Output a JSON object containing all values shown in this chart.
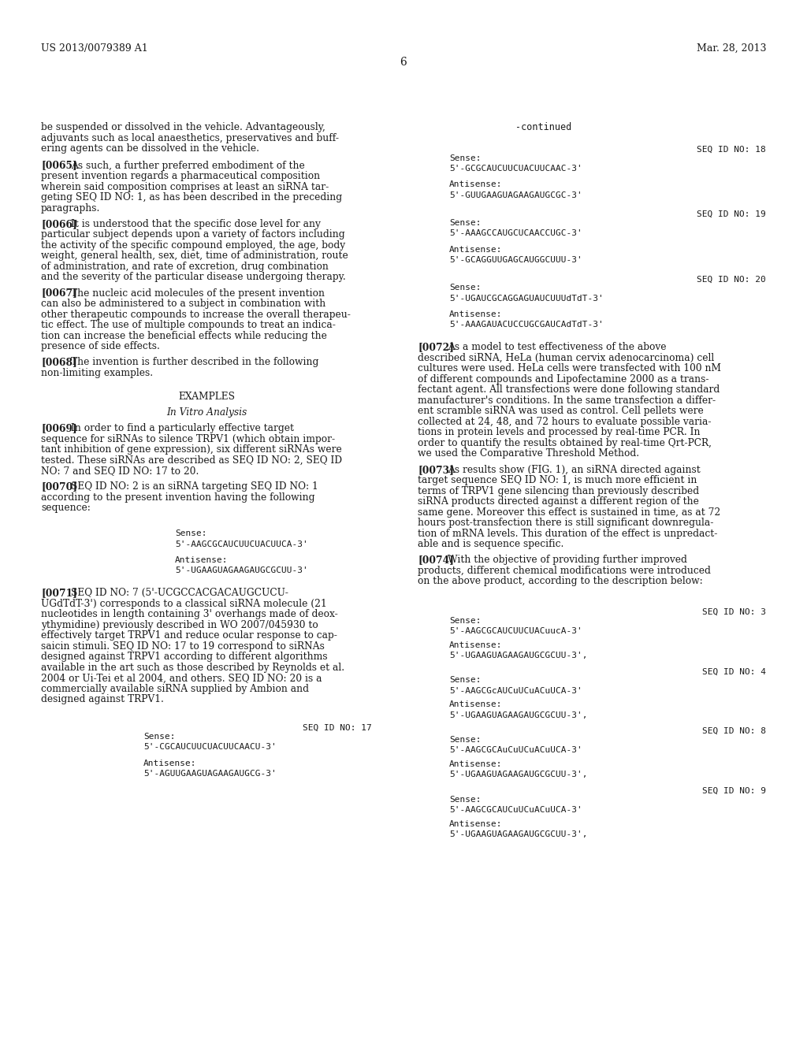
{
  "background_color": "#ffffff",
  "text_color": "#1a1a1a",
  "header_left": "US 2013/0079389 A1",
  "header_right": "Mar. 28, 2013",
  "page_number": "6",
  "continued_label": "-continued",
  "intro_text_lines": [
    "be suspended or dissolved in the vehicle. Advantageously,",
    "adjuvants such as local anaesthetics, preservatives and buff-",
    "ering agents can be dissolved in the vehicle."
  ],
  "para_0065_lines": [
    "As such, a further preferred embodiment of the",
    "present invention regards a pharmaceutical composition",
    "wherein said composition comprises at least an siRNA tar-",
    "geting SEQ ID NO: 1, as has been described in the preceding",
    "paragraphs."
  ],
  "para_0066_lines": [
    "It is understood that the specific dose level for any",
    "particular subject depends upon a variety of factors including",
    "the activity of the specific compound employed, the age, body",
    "weight, general health, sex, diet, time of administration, route",
    "of administration, and rate of excretion, drug combination",
    "and the severity of the particular disease undergoing therapy."
  ],
  "para_0067_lines": [
    "The nucleic acid molecules of the present invention",
    "can also be administered to a subject in combination with",
    "other therapeutic compounds to increase the overall therapeu-",
    "tic effect. The use of multiple compounds to treat an indica-",
    "tion can increase the beneficial effects while reducing the",
    "presence of side effects."
  ],
  "para_0068_lines": [
    "The invention is further described in the following",
    "non-limiting examples."
  ],
  "examples_header": "EXAMPLES",
  "examples_subheader": "In Vitro Analysis",
  "para_0069_lines": [
    "In order to find a particularly effective target",
    "sequence for siRNAs to silence TRPV1 (which obtain impor-",
    "tant inhibition of gene expression), six different siRNAs were",
    "tested. These siRNAs are described as SEQ ID NO: 2, SEQ ID",
    "NO: 7 and SEQ ID NO: 17 to 20."
  ],
  "para_0070_lines": [
    "SEQ ID NO: 2 is an siRNA targeting SEQ ID NO: 1",
    "according to the present invention having the following",
    "sequence:"
  ],
  "seq_2_indent": "                    ",
  "seq_2_sense_label": "Sense:",
  "seq_2_sense": "5'-AAGCGCAUCUUCUACUUCA-3'",
  "seq_2_antisense_label": "Antisense:",
  "seq_2_antisense": "5'-UGAAGUAGAAGAUGCGCUU-3'",
  "para_0071_lines": [
    "SEQ ID NO: 7 (5'-UCGCCACGACAUGCUCU-",
    "UGdTdT-3') corresponds to a classical siRNA molecule (21",
    "nucleotides in length containing 3' overhangs made of deox-",
    "ythymidine) previously described in WO 2007/045930 to",
    "effectively target TRPV1 and reduce ocular response to cap-",
    "saicin stimuli. SEQ ID NO: 17 to 19 correspond to siRNAs",
    "designed against TRPV1 according to different algorithms",
    "available in the art such as those described by Reynolds et al.",
    "2004 or Ui-Tei et al 2004, and others. SEQ ID NO: 20 is a",
    "commercially available siRNA supplied by Ambion and",
    "designed against TRPV1."
  ],
  "seq_17_label": "SEQ ID NO: 17",
  "seq_17_sense_label": "Sense:",
  "seq_17_sense": "5'-CGCAUCUUCUACUUCAACU-3'",
  "seq_17_antisense_label": "Antisense:",
  "seq_17_antisense": "5'-AGUUGAAGUAGAAGAUGCG-3'",
  "right_seq18_label": "SEQ ID NO: 18",
  "right_seq18_sense_label": "Sense:",
  "right_seq18_sense": "5'-GCGCAUCUUCUACUUCAAC-3'",
  "right_seq18_antisense_label": "Antisense:",
  "right_seq18_antisense": "5'-GUUGAAGUAGAAGAUGCGC-3'",
  "right_seq19_label": "SEQ ID NO: 19",
  "right_seq19_sense_label": "Sense:",
  "right_seq19_sense": "5'-AAAGCCAUGCUCAACCUGC-3'",
  "right_seq19_antisense_label": "Antisense:",
  "right_seq19_antisense": "5'-GCAGGUUGAGCAUGGCUUU-3'",
  "right_seq20_label": "SEQ ID NO: 20",
  "right_seq20_sense_label": "Sense:",
  "right_seq20_sense": "5'-UGAUCGCAGGAGUAUCUUUdTdT-3'",
  "right_seq20_antisense_label": "Antisense:",
  "right_seq20_antisense": "5'-AAAGAUACUCCUGCGAUCAdTdT-3'",
  "para_0072_lines": [
    "As a model to test effectiveness of the above",
    "described siRNA, HeLa (human cervix adenocarcinoma) cell",
    "cultures were used. HeLa cells were transfected with 100 nM",
    "of different compounds and Lipofectamine 2000 as a trans-",
    "fectant agent. All transfections were done following standard",
    "manufacturer's conditions. In the same transfection a differ-",
    "ent scramble siRNA was used as control. Cell pellets were",
    "collected at 24, 48, and 72 hours to evaluate possible varia-",
    "tions in protein levels and processed by real-time PCR. In",
    "order to quantify the results obtained by real-time Qrt-PCR,",
    "we used the Comparative Threshold Method."
  ],
  "para_0073_lines": [
    "As results show (FIG. 1), an siRNA directed against",
    "target sequence SEQ ID NO: 1, is much more efficient in",
    "terms of TRPV1 gene silencing than previously described",
    "siRNA products directed against a different region of the",
    "same gene. Moreover this effect is sustained in time, as at 72",
    "hours post-transfection there is still significant downregula-",
    "tion of mRNA levels. This duration of the effect is unpredact-",
    "able and is sequence specific."
  ],
  "para_0074_lines": [
    "With the objective of providing further improved",
    "products, different chemical modifications were introduced",
    "on the above product, according to the description below:"
  ],
  "right_seq3_label": "SEQ ID NO: 3",
  "right_seq3_sense_label": "Sense:",
  "right_seq3_sense": "5'-AAGCGCAUCUUCUACuucA-3'",
  "right_seq3_antisense_label": "Antisense:",
  "right_seq3_antisense": "5'-UGAAGUAGAAGAUGCGCUU-3',",
  "right_seq4_label": "SEQ ID NO: 4",
  "right_seq4_sense_label": "Sense:",
  "right_seq4_sense": "5'-AAGCGcAUCuUCuACuUCA-3'",
  "right_seq4_antisense_label": "Antisense:",
  "right_seq4_antisense": "5'-UGAAGUAGAAGAUGCGCUU-3',",
  "right_seq8_label": "SEQ ID NO: 8",
  "right_seq8_sense_label": "Sense:",
  "right_seq8_sense": "5'-AAGCGCAuCuUCuACuUCA-3'",
  "right_seq8_antisense_label": "Antisense:",
  "right_seq8_antisense": "5'-UGAAGUAGAAGAUGCGCUU-3',",
  "right_seq9_label": "SEQ ID NO: 9",
  "right_seq9_sense_label": "Sense:",
  "right_seq9_sense": "5'-AAGCGCAUCuUCuACuUCA-3'",
  "right_seq9_antisense_label": "Antisense:",
  "right_seq9_antisense": "5'-UGAAGUAGAAGAUGCGCUU-3',"
}
